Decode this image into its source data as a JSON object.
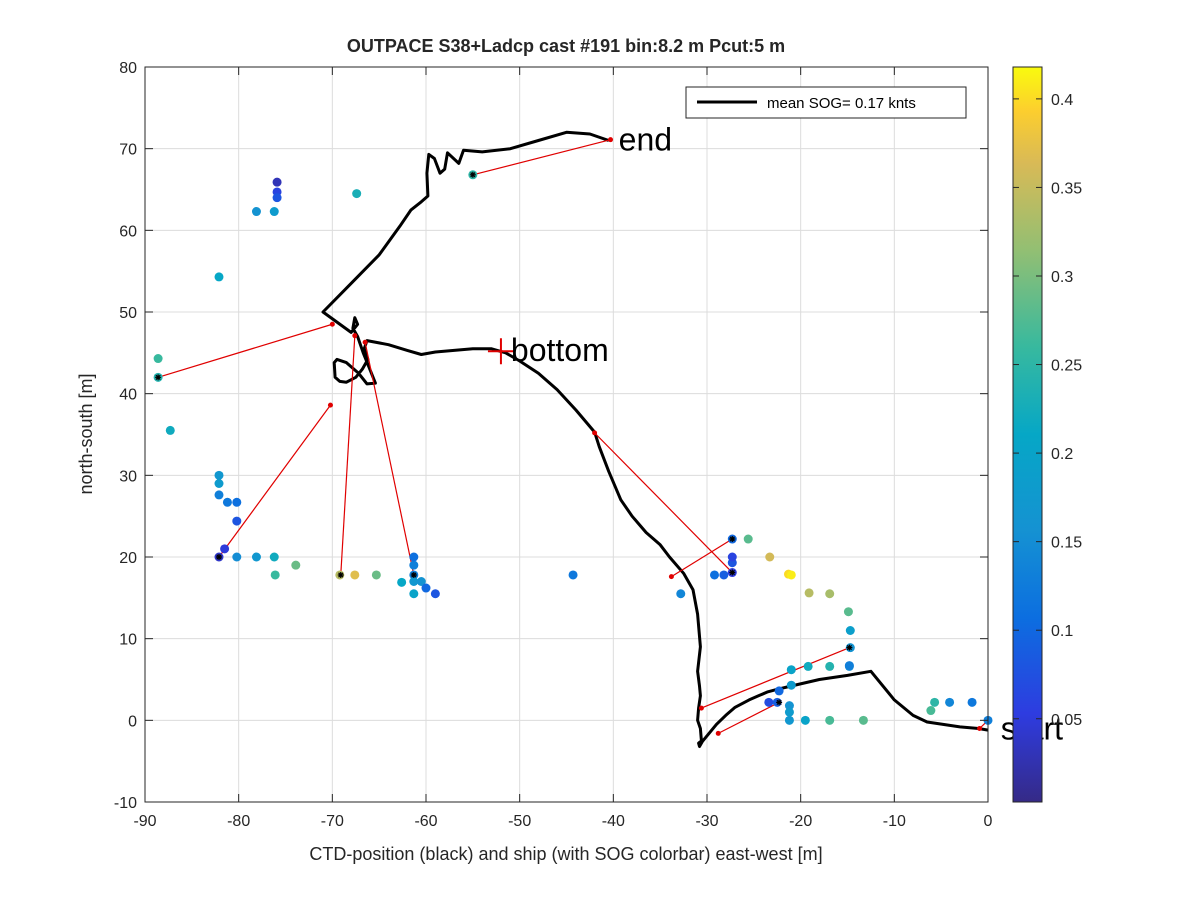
{
  "chart_data": {
    "type": "scatter",
    "title": "OUTPACE S38+Ladcp cast #191 bin:8.2 m  Pcut:5 m",
    "xlabel": "CTD-position (black) and ship (with SOG colorbar) east-west [m]",
    "ylabel": "north-south [m]",
    "xlim": [
      -90,
      0
    ],
    "ylim": [
      -10,
      80
    ],
    "xticks": [
      -90,
      -80,
      -70,
      -60,
      -50,
      -40,
      -30,
      -20,
      -10,
      0
    ],
    "yticks": [
      -10,
      0,
      10,
      20,
      30,
      40,
      50,
      60,
      70,
      80
    ],
    "grid": true,
    "legend": {
      "label": "mean SOG=  0.17 knts",
      "placement": "top-right"
    },
    "colorbar": {
      "range": [
        0.003,
        0.418
      ],
      "ticks": [
        0.05,
        0.1,
        0.15,
        0.2,
        0.25,
        0.3,
        0.35,
        0.4
      ],
      "colormap": "parula"
    },
    "annotations": [
      {
        "text": "end",
        "x": -40.5,
        "y": 71
      },
      {
        "text": "bottom",
        "x": -52,
        "y": 45.2
      },
      {
        "text": "start",
        "x": 0.3,
        "y": -1.1
      }
    ],
    "ctd_track": [
      [
        0,
        -1.2
      ],
      [
        -1,
        -1
      ],
      [
        -3,
        -0.8
      ],
      [
        -6.5,
        -0.2
      ],
      [
        -8,
        0.6
      ],
      [
        -10,
        2.5
      ],
      [
        -12.5,
        6
      ],
      [
        -15,
        5.5
      ],
      [
        -18,
        5
      ],
      [
        -21,
        4.2
      ],
      [
        -22.5,
        3.8
      ],
      [
        -23.5,
        3.5
      ],
      [
        -24.5,
        3
      ],
      [
        -25.5,
        2.5
      ],
      [
        -27,
        1.6
      ],
      [
        -28,
        0.6
      ],
      [
        -29,
        -0.5
      ],
      [
        -30.5,
        -2.6
      ],
      [
        -30.8,
        -3.2
      ],
      [
        -30.9,
        -2.8
      ],
      [
        -30.6,
        -2.5
      ],
      [
        -30.7,
        -1
      ],
      [
        -31,
        0
      ],
      [
        -30.9,
        1.5
      ],
      [
        -30.7,
        3
      ],
      [
        -30.8,
        4.2
      ],
      [
        -31,
        6
      ],
      [
        -30.7,
        9
      ],
      [
        -31,
        13
      ],
      [
        -31.5,
        16
      ],
      [
        -32.5,
        18
      ],
      [
        -34,
        20
      ],
      [
        -35,
        21.5
      ],
      [
        -36.5,
        23
      ],
      [
        -38,
        25
      ],
      [
        -39.2,
        27
      ],
      [
        -40.5,
        30.5
      ],
      [
        -41.5,
        33.5
      ],
      [
        -42,
        35.3
      ],
      [
        -44,
        38
      ],
      [
        -46,
        40.5
      ],
      [
        -48,
        42.5
      ],
      [
        -50,
        44
      ],
      [
        -51.5,
        45
      ],
      [
        -53,
        45.5
      ],
      [
        -55,
        45.5
      ],
      [
        -57,
        45.3
      ],
      [
        -59,
        45.1
      ],
      [
        -60.5,
        44.8
      ],
      [
        -62,
        45.3
      ],
      [
        -64,
        46
      ],
      [
        -66.3,
        46.5
      ],
      [
        -66.6,
        45.5
      ],
      [
        -66.2,
        44.2
      ],
      [
        -66.8,
        43
      ],
      [
        -67.5,
        42
      ],
      [
        -68.5,
        41.4
      ],
      [
        -69.2,
        41.5
      ],
      [
        -69.7,
        42
      ],
      [
        -69.8,
        43.8
      ],
      [
        -69.5,
        44.2
      ],
      [
        -68.5,
        43.8
      ],
      [
        -67.2,
        42.5
      ],
      [
        -66.3,
        41.2
      ],
      [
        -65.4,
        41.3
      ],
      [
        -66,
        43
      ],
      [
        -66.7,
        45
      ],
      [
        -67.3,
        47
      ],
      [
        -67.8,
        48
      ],
      [
        -67.6,
        49.3
      ],
      [
        -67.3,
        48.5
      ],
      [
        -68,
        47.5
      ],
      [
        -71,
        50
      ],
      [
        -68,
        53.5
      ],
      [
        -65,
        57
      ],
      [
        -62.8,
        60.5
      ],
      [
        -61.6,
        62.5
      ],
      [
        -60.5,
        63.5
      ],
      [
        -59.8,
        64.2
      ],
      [
        -59.9,
        67
      ],
      [
        -59.7,
        69.3
      ],
      [
        -59.1,
        68.8
      ],
      [
        -58.5,
        67
      ],
      [
        -58,
        67.5
      ],
      [
        -57.7,
        69.5
      ],
      [
        -56.5,
        68.2
      ],
      [
        -56,
        69.8
      ],
      [
        -54,
        69.6
      ],
      [
        -51,
        70
      ],
      [
        -48,
        71
      ],
      [
        -45,
        72
      ],
      [
        -42.5,
        71.8
      ],
      [
        -40.5,
        71
      ]
    ],
    "ship_points": [
      [
        -88.6,
        44.3,
        0.26
      ],
      [
        -88.6,
        42,
        0.24
      ],
      [
        -87.3,
        35.5,
        0.22
      ],
      [
        -82.1,
        54.3,
        0.21
      ],
      [
        -82.1,
        30,
        0.17
      ],
      [
        -82.1,
        29,
        0.18
      ],
      [
        -82.1,
        27.6,
        0.13
      ],
      [
        -81.2,
        26.7,
        0.12
      ],
      [
        -80.2,
        26.7,
        0.11
      ],
      [
        -80.2,
        24.4,
        0.08
      ],
      [
        -81.5,
        21,
        0.05
      ],
      [
        -82.1,
        20,
        0.04
      ],
      [
        -80.2,
        20,
        0.15
      ],
      [
        -78.1,
        20,
        0.17
      ],
      [
        -76.2,
        20,
        0.22
      ],
      [
        -76.1,
        17.8,
        0.26
      ],
      [
        -73.9,
        19,
        0.29
      ],
      [
        -78.1,
        62.3,
        0.16
      ],
      [
        -76.2,
        62.3,
        0.18
      ],
      [
        -75.9,
        65.9,
        0.03
      ],
      [
        -75.9,
        64.7,
        0.06
      ],
      [
        -75.9,
        64,
        0.08
      ],
      [
        -67.4,
        64.5,
        0.23
      ],
      [
        -55,
        66.8,
        0.25
      ],
      [
        -69.2,
        17.8,
        0.34
      ],
      [
        -67.6,
        17.8,
        0.37
      ],
      [
        -65.3,
        17.8,
        0.29
      ],
      [
        -62.6,
        16.9,
        0.21
      ],
      [
        -61.3,
        15.5,
        0.2
      ],
      [
        -61.3,
        17.8,
        0.13
      ],
      [
        -61.3,
        19,
        0.13
      ],
      [
        -61.3,
        20,
        0.11
      ],
      [
        -61.3,
        17,
        0.17
      ],
      [
        -60.5,
        17,
        0.16
      ],
      [
        -60,
        16.2,
        0.1
      ],
      [
        -59,
        15.5,
        0.08
      ],
      [
        -44.3,
        17.8,
        0.12
      ],
      [
        -32.8,
        15.5,
        0.14
      ],
      [
        -29.2,
        17.8,
        0.11
      ],
      [
        -28.2,
        17.8,
        0.09
      ],
      [
        -27.3,
        18.1,
        0.05
      ],
      [
        -27.3,
        19.3,
        0.08
      ],
      [
        -27.3,
        20,
        0.06
      ],
      [
        -27.3,
        22.2,
        0.1
      ],
      [
        -25.6,
        22.2,
        0.28
      ],
      [
        -23.3,
        20,
        0.36
      ],
      [
        -21.3,
        17.9,
        0.4
      ],
      [
        -21,
        17.8,
        0.41
      ],
      [
        -19.1,
        15.6,
        0.34
      ],
      [
        -16.9,
        15.5,
        0.33
      ],
      [
        -14.9,
        13.3,
        0.28
      ],
      [
        -14.7,
        11,
        0.19
      ],
      [
        -14.7,
        8.9,
        0.16
      ],
      [
        -14.8,
        6.6,
        0.15
      ],
      [
        -14.8,
        6.7,
        0.13
      ],
      [
        -16.9,
        6.6,
        0.24
      ],
      [
        -19.2,
        6.6,
        0.22
      ],
      [
        -21,
        6.2,
        0.2
      ],
      [
        -21,
        4.3,
        0.18
      ],
      [
        -22.3,
        3.6,
        0.1
      ],
      [
        -23.4,
        2.2,
        0.07
      ],
      [
        -22.5,
        2.2,
        0.09
      ],
      [
        -21.2,
        1.8,
        0.16
      ],
      [
        -21.2,
        1,
        0.18
      ],
      [
        -21.2,
        0,
        0.17
      ],
      [
        -19.5,
        0,
        0.2
      ],
      [
        -16.9,
        0,
        0.27
      ],
      [
        -13.3,
        0,
        0.28
      ],
      [
        -6.1,
        1.2,
        0.27
      ],
      [
        -5.7,
        2.2,
        0.25
      ],
      [
        -4.1,
        2.2,
        0.14
      ],
      [
        -1.7,
        2.2,
        0.12
      ],
      [
        0,
        0,
        0.13
      ]
    ],
    "cast_markers": [
      [
        -88.6,
        42
      ],
      [
        -82.1,
        20
      ],
      [
        -69.1,
        17.8
      ],
      [
        -61.3,
        17.8
      ],
      [
        -55,
        66.8
      ],
      [
        -27.3,
        22.2
      ],
      [
        -27.3,
        18.1
      ],
      [
        -22.3,
        2.2
      ],
      [
        -14.8,
        8.9
      ]
    ],
    "ship_ctd_links": [
      [
        [
          -88.6,
          42
        ],
        [
          -70,
          48.5
        ]
      ],
      [
        [
          -82.1,
          20
        ],
        [
          -70.2,
          38.6
        ]
      ],
      [
        [
          -69.1,
          17.8
        ],
        [
          -67.6,
          47.1
        ]
      ],
      [
        [
          -61.3,
          17.8
        ],
        [
          -66.5,
          46.3
        ]
      ],
      [
        [
          -55,
          66.8
        ],
        [
          -40.3,
          71.1
        ]
      ],
      [
        [
          -27.3,
          18.1
        ],
        [
          -42,
          35.2
        ]
      ],
      [
        [
          -27.3,
          22.2
        ],
        [
          -33.8,
          17.6
        ]
      ],
      [
        [
          -22.3,
          2.2
        ],
        [
          -28.8,
          -1.6
        ]
      ],
      [
        [
          -14.8,
          8.9
        ],
        [
          -30.6,
          1.5
        ]
      ],
      [
        [
          0,
          0
        ],
        [
          -0.9,
          -1
        ]
      ]
    ]
  }
}
